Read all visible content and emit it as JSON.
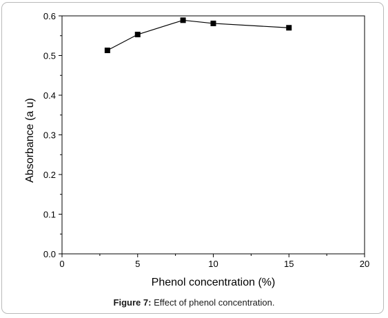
{
  "chart_data": {
    "type": "line",
    "title": "",
    "xlabel": "Phenol concentration (%)",
    "ylabel": "Absorbance (a u)",
    "xlim": [
      0,
      20
    ],
    "ylim": [
      0.0,
      0.6
    ],
    "x_ticks": [
      0,
      5,
      10,
      15,
      20
    ],
    "x_tick_labels": [
      "0",
      "5",
      "10",
      "15",
      "20"
    ],
    "y_ticks": [
      0.0,
      0.1,
      0.2,
      0.3,
      0.4,
      0.5,
      0.6
    ],
    "y_tick_labels": [
      "0.0",
      "0.1",
      "0.2",
      "0.3",
      "0.4",
      "0.5",
      "0.6"
    ],
    "grid": false,
    "series": [
      {
        "marker": "square",
        "color": "#000000",
        "x": [
          3,
          5,
          8,
          10,
          15
        ],
        "y": [
          0.513,
          0.553,
          0.589,
          0.581,
          0.57
        ]
      }
    ]
  },
  "caption": {
    "label": "Figure 7:",
    "text": " Effect of phenol concentration."
  }
}
